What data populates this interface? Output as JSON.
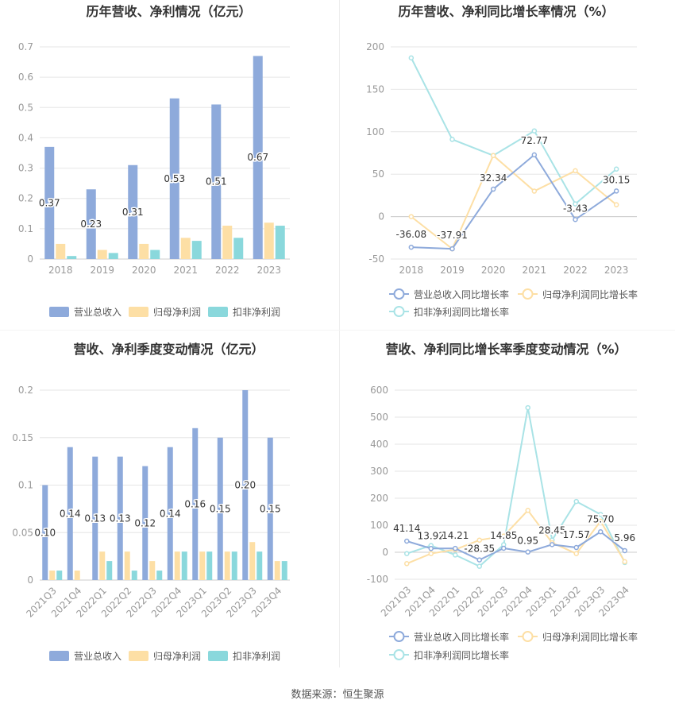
{
  "source_text": "数据来源：恒生聚源",
  "colors": {
    "revenue": "#8eaadb",
    "parent_profit": "#fddfa5",
    "deducted_profit": "#8ad8dc",
    "axis_text": "#999999",
    "title": "#333333",
    "grid": "#e6e6e6"
  },
  "chart_data": [
    {
      "type": "bar",
      "title": "历年营收、净利情况（亿元）",
      "categories": [
        "2018",
        "2019",
        "2020",
        "2021",
        "2022",
        "2023"
      ],
      "ylim": [
        0,
        0.7
      ],
      "yticks": [
        "0",
        "0.1",
        "0.2",
        "0.3",
        "0.4",
        "0.5",
        "0.6",
        "0.7"
      ],
      "series": [
        {
          "name": "营业总收入",
          "values": [
            0.37,
            0.23,
            0.31,
            0.53,
            0.51,
            0.67
          ],
          "labels": [
            "0.37",
            "0.23",
            "0.31",
            "0.53",
            "0.51",
            "0.67"
          ]
        },
        {
          "name": "归母净利润",
          "values": [
            0.05,
            0.03,
            0.05,
            0.07,
            0.11,
            0.12
          ]
        },
        {
          "name": "扣非净利润",
          "values": [
            0.01,
            0.02,
            0.03,
            0.06,
            0.07,
            0.11
          ]
        }
      ],
      "legend": "bottom"
    },
    {
      "type": "line",
      "title": "历年营收、净利同比增长率情况（%）",
      "categories": [
        "2018",
        "2019",
        "2020",
        "2021",
        "2022",
        "2023"
      ],
      "ylim": [
        -50,
        200
      ],
      "yticks": [
        "-50",
        "0",
        "50",
        "100",
        "150",
        "200"
      ],
      "series": [
        {
          "name": "营业总收入同比增长率",
          "values": [
            -36.08,
            -37.91,
            32.34,
            72.77,
            -3.43,
            30.15
          ],
          "labels": [
            "-36.08",
            "-37.91",
            "32.34",
            "72.77",
            "-3.43",
            "30.15"
          ]
        },
        {
          "name": "归母净利润同比增长率",
          "values": [
            0,
            -38,
            72,
            30,
            54,
            14
          ]
        },
        {
          "name": "扣非净利润同比增长率",
          "values": [
            187,
            91,
            72,
            101,
            15,
            56
          ]
        }
      ],
      "legend": "bottom"
    },
    {
      "type": "bar",
      "title": "营收、净利季度变动情况（亿元）",
      "categories": [
        "2021Q3",
        "2021Q4",
        "2022Q1",
        "2022Q2",
        "2022Q3",
        "2022Q4",
        "2023Q1",
        "2023Q2",
        "2023Q3",
        "2023Q4"
      ],
      "ylim": [
        0,
        0.2
      ],
      "yticks": [
        "0",
        "0.05",
        "0.1",
        "0.15",
        "0.2"
      ],
      "series": [
        {
          "name": "营业总收入",
          "values": [
            0.1,
            0.14,
            0.13,
            0.13,
            0.12,
            0.14,
            0.16,
            0.15,
            0.2,
            0.15
          ],
          "labels": [
            "0.10",
            "0.14",
            "0.13",
            "0.13",
            "0.12",
            "0.14",
            "0.16",
            "0.15",
            "0.20",
            "0.15"
          ]
        },
        {
          "name": "归母净利润",
          "values": [
            0.01,
            0.01,
            0.03,
            0.03,
            0.02,
            0.03,
            0.03,
            0.03,
            0.04,
            0.02
          ]
        },
        {
          "name": "扣非净利润",
          "values": [
            0.01,
            0.0,
            0.02,
            0.01,
            0.01,
            0.03,
            0.03,
            0.03,
            0.03,
            0.02
          ]
        }
      ],
      "legend": "bottom"
    },
    {
      "type": "line",
      "title": "营收、净利同比增长率季度变动情况（%）",
      "categories": [
        "2021Q3",
        "2021Q4",
        "2022Q1",
        "2022Q2",
        "2022Q3",
        "2022Q4",
        "2023Q1",
        "2023Q2",
        "2023Q3",
        "2023Q4"
      ],
      "ylim": [
        -100,
        600
      ],
      "yticks": [
        "-100",
        "0",
        "100",
        "200",
        "300",
        "400",
        "500",
        "600"
      ],
      "series": [
        {
          "name": "营业总收入同比增长率",
          "values": [
            41.14,
            13.92,
            14.21,
            -28.35,
            14.85,
            0.95,
            28.45,
            17.57,
            75.7,
            5.96
          ],
          "labels": [
            "41.14",
            "13.92",
            "14.21",
            "-28.35",
            "14.85",
            "0.95",
            "28.45",
            "17.57",
            "75.70",
            "5.96"
          ]
        },
        {
          "name": "归母净利润同比增长率",
          "values": [
            -42,
            -5,
            10,
            45,
            60,
            155,
            35,
            -5,
            115,
            -35
          ]
        },
        {
          "name": "扣非净利润同比增长率",
          "values": [
            -5,
            25,
            -10,
            -52,
            28,
            535,
            45,
            188,
            140,
            -38
          ]
        }
      ],
      "legend": "bottom"
    }
  ]
}
